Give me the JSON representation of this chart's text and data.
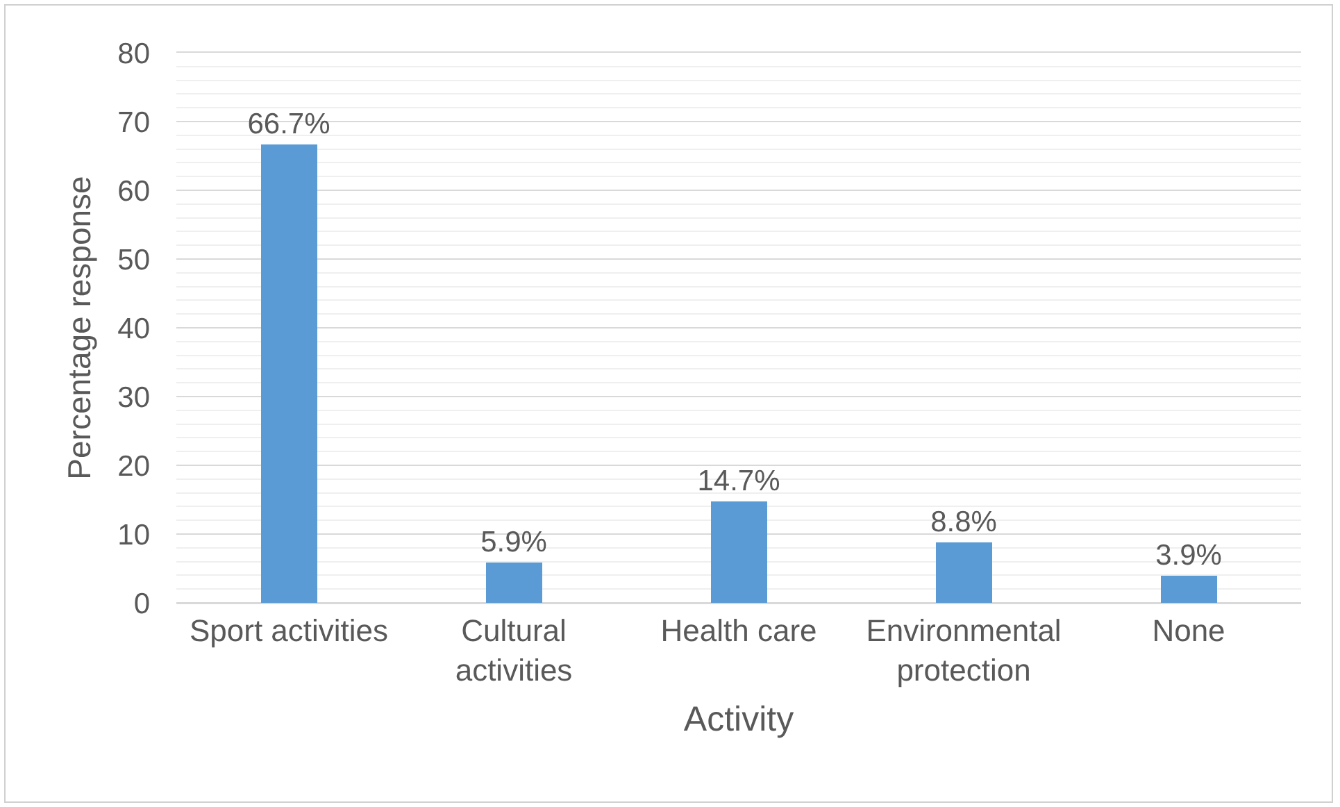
{
  "chart_data": {
    "type": "bar",
    "xlabel": "Activity",
    "ylabel": "Percentage response",
    "categories": [
      "Sport activities",
      "Cultural activities",
      "Health care",
      "Environmental protection",
      "None"
    ],
    "values": [
      66.7,
      5.9,
      14.7,
      8.8,
      3.9
    ],
    "value_labels": [
      "66.7%",
      "5.9%",
      "14.7%",
      "8.8%",
      "3.9%"
    ],
    "color": "#5b9bd5",
    "ylim": [
      0,
      80
    ],
    "yticks": [
      0,
      {
        "value": 2,
        "label": null
      },
      {
        "value": 4,
        "label": null
      },
      {
        "value": 6,
        "label": null
      },
      {
        "value": 8,
        "label": null
      },
      10,
      {
        "value": 12,
        "label": null
      },
      {
        "value": 14,
        "label": null
      },
      {
        "value": 16,
        "label": null
      },
      {
        "value": 18,
        "label": null
      },
      20,
      {
        "value": 22,
        "label": null
      },
      {
        "value": 24,
        "label": null
      },
      {
        "value": 26,
        "label": null
      },
      {
        "value": 28,
        "label": null
      },
      30,
      {
        "value": 32,
        "label": null
      },
      {
        "value": 34,
        "label": null
      },
      {
        "value": 36,
        "label": null
      },
      {
        "value": 38,
        "label": null
      },
      40,
      {
        "value": 42,
        "label": null
      },
      {
        "value": 44,
        "label": null
      },
      {
        "value": 46,
        "label": null
      },
      {
        "value": 48,
        "label": null
      },
      50,
      {
        "value": 52,
        "label": null
      },
      {
        "value": 54,
        "label": null
      },
      {
        "value": 56,
        "label": null
      },
      {
        "value": 58,
        "label": null
      },
      60,
      {
        "value": 62,
        "label": null
      },
      {
        "value": 64,
        "label": null
      },
      {
        "value": 66,
        "label": null
      },
      {
        "value": 68,
        "label": null
      },
      70,
      {
        "value": 72,
        "label": null
      },
      {
        "value": 74,
        "label": null
      },
      {
        "value": 76,
        "label": null
      },
      {
        "value": 78,
        "label": null
      },
      80
    ],
    "grid": "y"
  }
}
